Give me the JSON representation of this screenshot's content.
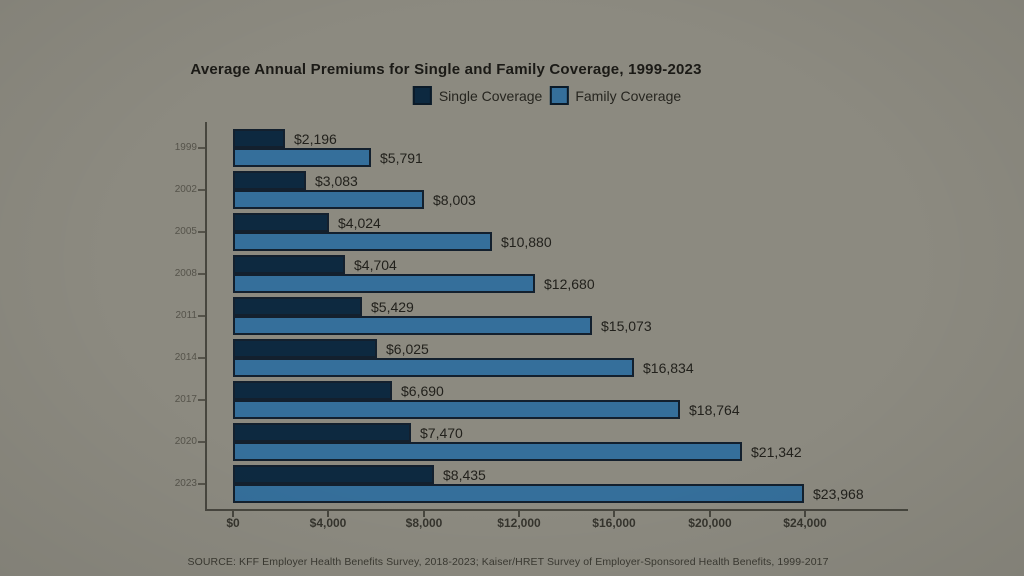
{
  "page": {
    "background_color": "#8c8a80"
  },
  "chart_data": {
    "type": "bar",
    "orientation": "horizontal",
    "title": "Average Annual Premiums for Single and Family Coverage, 1999-2023",
    "categories": [
      "1999",
      "2002",
      "2005",
      "2008",
      "2011",
      "2014",
      "2017",
      "2020",
      "2023"
    ],
    "series": [
      {
        "name": "Single Coverage",
        "color": "#0d2940",
        "values": [
          2196,
          3083,
          4024,
          4704,
          5429,
          6025,
          6690,
          7470,
          8435
        ],
        "labels": [
          "$2,196",
          "$3,083",
          "$4,024",
          "$4,704",
          "$5,429",
          "$6,025",
          "$6,690",
          "$7,470",
          "$8,435"
        ]
      },
      {
        "name": "Family Coverage",
        "color": "#356f9b",
        "values": [
          5791,
          8003,
          10880,
          12680,
          15073,
          16834,
          18764,
          21342,
          23968
        ],
        "labels": [
          "$5,791",
          "$8,003",
          "$10,880",
          "$12,680",
          "$15,073",
          "$16,834",
          "$18,764",
          "$21,342",
          "$23,968"
        ]
      }
    ],
    "x_axis": {
      "min": 0,
      "max": 24000,
      "ticks": [
        0,
        4000,
        8000,
        12000,
        16000,
        20000,
        24000
      ],
      "tick_labels": [
        "$0",
        "$4,000",
        "$8,000",
        "$12,000",
        "$16,000",
        "$20,000",
        "$24,000"
      ]
    },
    "legend_position": "top",
    "grid": false,
    "bar_border_color": "#13202e"
  },
  "footer": {
    "source": "SOURCE: KFF Employer Health Benefits Survey, 2018-2023; Kaiser/HRET Survey of Employer-Sponsored Health Benefits, 1999-2017"
  }
}
